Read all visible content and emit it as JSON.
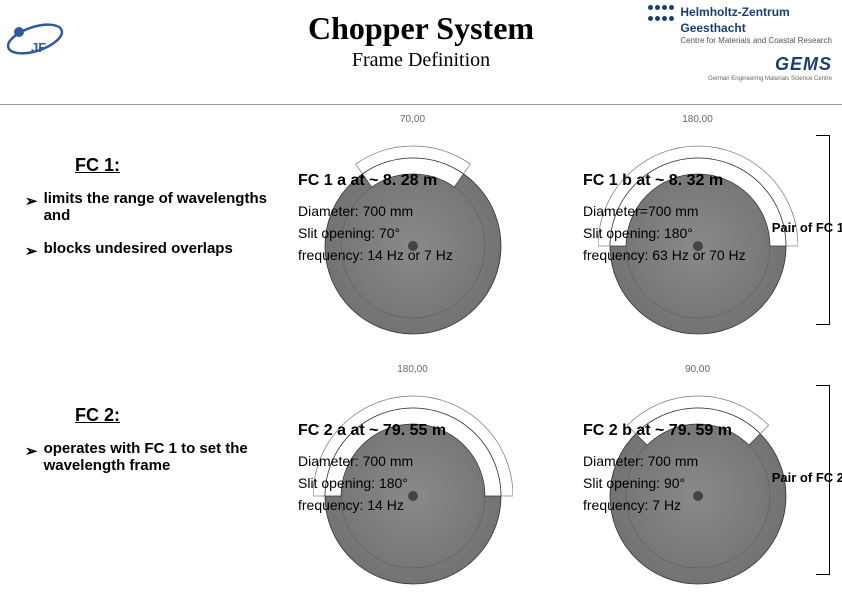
{
  "header": {
    "title": "Chopper System",
    "subtitle": "Frame Definition",
    "hz_line1": "Helmholtz-Zentrum",
    "hz_line2": "Geesthacht",
    "hz_line3": "Centre for Materials and Coastal Research",
    "gems": "GEMS",
    "gems_sub": "German Engineering Materials Science Centre"
  },
  "fc1": {
    "heading": "FC 1:",
    "bullets": [
      "limits the range of wavelengths and",
      "blocks undesired overlaps"
    ]
  },
  "fc2": {
    "heading": "FC 2:",
    "bullets": [
      "operates with FC 1 to set the wavelength frame"
    ]
  },
  "pair_labels": {
    "fc1": "Pair of FC 1",
    "fc2": "Pair of FC 2"
  },
  "choppers": [
    {
      "key": "fc1a",
      "dim_label": "70,00",
      "label": "FC 1 a at ~ 8. 28 m",
      "diameter": "Diameter: 700 mm",
      "slit": "Slit opening: 70°",
      "freq": "frequency: 14 Hz or 7 Hz",
      "slit_angle_deg": 70,
      "slit_center_deg": -90,
      "disc_color": "#6e6e6e",
      "ring_color": "#b5b5b5"
    },
    {
      "key": "fc1b",
      "dim_label": "180,00",
      "label": "FC 1 b at ~ 8. 32 m",
      "diameter": "Diameter=700 mm",
      "slit": "Slit opening: 180°",
      "freq": "frequency: 63 Hz or 70 Hz",
      "slit_angle_deg": 180,
      "slit_center_deg": -90,
      "disc_color": "#6e6e6e",
      "ring_color": "#b5b5b5"
    },
    {
      "key": "fc2a",
      "dim_label": "180,00",
      "label": "FC 2 a at ~ 79. 55 m",
      "diameter": "Diameter: 700 mm",
      "slit": "Slit opening: 180°",
      "freq": "frequency: 14 Hz",
      "slit_angle_deg": 180,
      "slit_center_deg": -90,
      "disc_color": "#6e6e6e",
      "ring_color": "#b5b5b5"
    },
    {
      "key": "fc2b",
      "dim_label": "90,00",
      "label": "FC 2 b at ~ 79. 59 m",
      "diameter": "Diameter: 700 mm",
      "slit": "Slit opening: 90°",
      "freq": "frequency:  7 Hz",
      "slit_angle_deg": 90,
      "slit_center_deg": -90,
      "disc_color": "#6e6e6e",
      "ring_color": "#b5b5b5"
    }
  ],
  "style": {
    "disc_outer_r": 88,
    "slit_band_outer_r": 88,
    "slit_band_inner_r": 72,
    "hub_r": 5,
    "outline_color": "#333333",
    "dim_ring_gap": 12
  }
}
